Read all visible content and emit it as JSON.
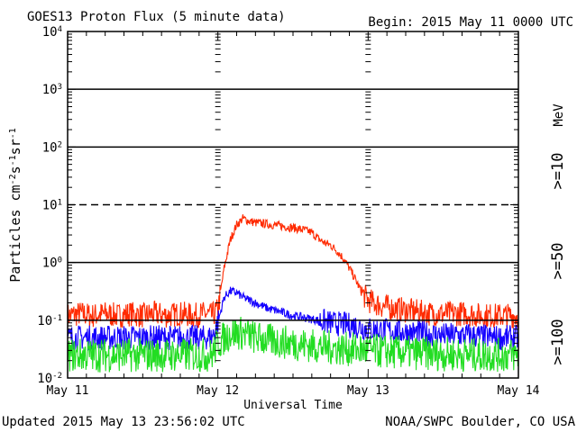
{
  "header": {
    "title": "GOES13 Proton Flux (5 minute data)",
    "begin": "Begin: 2015 May 11 0000 UTC"
  },
  "footer": {
    "updated": "Updated 2015 May 13 23:56:02 UTC",
    "credit": "NOAA/SWPC Boulder, CO USA"
  },
  "chart_data": {
    "type": "line",
    "title": "GOES13 Proton Flux (5 minute data)",
    "xlabel": "Universal Time",
    "ylabel_parts": [
      "Particles cm",
      "-2",
      "s",
      "-1",
      "sr",
      "-1"
    ],
    "y_scale": "log",
    "ylim": [
      0.01,
      10000
    ],
    "y_ticks": [
      {
        "base": "10",
        "exp": "4"
      },
      {
        "base": "10",
        "exp": "3"
      },
      {
        "base": "10",
        "exp": "2"
      },
      {
        "base": "10",
        "exp": "1"
      },
      {
        "base": "10",
        "exp": "0"
      },
      {
        "base": "10",
        "exp": "-1"
      },
      {
        "base": "10",
        "exp": "-2"
      }
    ],
    "x_unit": "hours since 2015 May 11 0000 UTC",
    "xlim": [
      0,
      72
    ],
    "x_ticks": [
      "May 11",
      "May 12",
      "May 13",
      "May 14"
    ],
    "grid": {
      "solid_levels": [
        1000,
        100,
        1,
        0.1
      ],
      "dashed_levels": [
        10
      ]
    },
    "energy_label": "MeV",
    "series": [
      {
        "name": ">=10",
        "color": "#ff2a00",
        "points": [
          [
            0,
            0.12
          ],
          [
            2,
            0.13
          ],
          [
            4,
            0.12
          ],
          [
            6,
            0.13
          ],
          [
            8,
            0.12
          ],
          [
            10,
            0.13
          ],
          [
            12,
            0.12
          ],
          [
            14,
            0.13
          ],
          [
            16,
            0.12
          ],
          [
            18,
            0.13
          ],
          [
            20,
            0.12
          ],
          [
            22,
            0.13
          ],
          [
            23,
            0.12
          ],
          [
            24,
            0.15
          ],
          [
            25,
            0.8
          ],
          [
            26,
            2.5
          ],
          [
            27,
            4.5
          ],
          [
            28,
            5.8
          ],
          [
            29,
            5.2
          ],
          [
            30,
            4.9
          ],
          [
            32,
            4.6
          ],
          [
            34,
            4.3
          ],
          [
            36,
            4.0
          ],
          [
            38,
            3.6
          ],
          [
            39,
            3.3
          ],
          [
            40,
            2.6
          ],
          [
            41,
            2.2
          ],
          [
            42,
            2.0
          ],
          [
            43,
            1.6
          ],
          [
            44,
            1.2
          ],
          [
            45,
            0.8
          ],
          [
            46,
            0.5
          ],
          [
            47,
            0.3
          ],
          [
            48,
            0.22
          ],
          [
            50,
            0.18
          ],
          [
            52,
            0.16
          ],
          [
            54,
            0.15
          ],
          [
            56,
            0.14
          ],
          [
            58,
            0.13
          ],
          [
            60,
            0.13
          ],
          [
            62,
            0.13
          ],
          [
            64,
            0.13
          ],
          [
            66,
            0.12
          ],
          [
            68,
            0.12
          ],
          [
            70,
            0.12
          ],
          [
            72,
            0.12
          ]
        ]
      },
      {
        "name": ">=50",
        "color": "#1400ff",
        "points": [
          [
            0,
            0.05
          ],
          [
            4,
            0.05
          ],
          [
            8,
            0.05
          ],
          [
            12,
            0.05
          ],
          [
            16,
            0.05
          ],
          [
            20,
            0.05
          ],
          [
            23,
            0.05
          ],
          [
            24,
            0.09
          ],
          [
            25,
            0.25
          ],
          [
            26,
            0.32
          ],
          [
            27,
            0.3
          ],
          [
            28,
            0.25
          ],
          [
            30,
            0.2
          ],
          [
            32,
            0.16
          ],
          [
            34,
            0.14
          ],
          [
            36,
            0.12
          ],
          [
            38,
            0.11
          ],
          [
            40,
            0.1
          ],
          [
            42,
            0.09
          ],
          [
            44,
            0.085
          ],
          [
            46,
            0.08
          ],
          [
            48,
            0.07
          ],
          [
            52,
            0.065
          ],
          [
            56,
            0.06
          ],
          [
            60,
            0.055
          ],
          [
            64,
            0.055
          ],
          [
            68,
            0.05
          ],
          [
            72,
            0.05
          ]
        ]
      },
      {
        "name": ">=100",
        "color": "#22dd22",
        "points": [
          [
            0,
            0.025
          ],
          [
            4,
            0.025
          ],
          [
            8,
            0.025
          ],
          [
            12,
            0.025
          ],
          [
            16,
            0.025
          ],
          [
            20,
            0.025
          ],
          [
            23,
            0.025
          ],
          [
            24,
            0.04
          ],
          [
            26,
            0.06
          ],
          [
            28,
            0.06
          ],
          [
            30,
            0.05
          ],
          [
            32,
            0.045
          ],
          [
            36,
            0.04
          ],
          [
            40,
            0.035
          ],
          [
            44,
            0.032
          ],
          [
            48,
            0.03
          ],
          [
            52,
            0.028
          ],
          [
            56,
            0.027
          ],
          [
            60,
            0.026
          ],
          [
            64,
            0.025
          ],
          [
            68,
            0.025
          ],
          [
            72,
            0.025
          ]
        ]
      }
    ]
  }
}
